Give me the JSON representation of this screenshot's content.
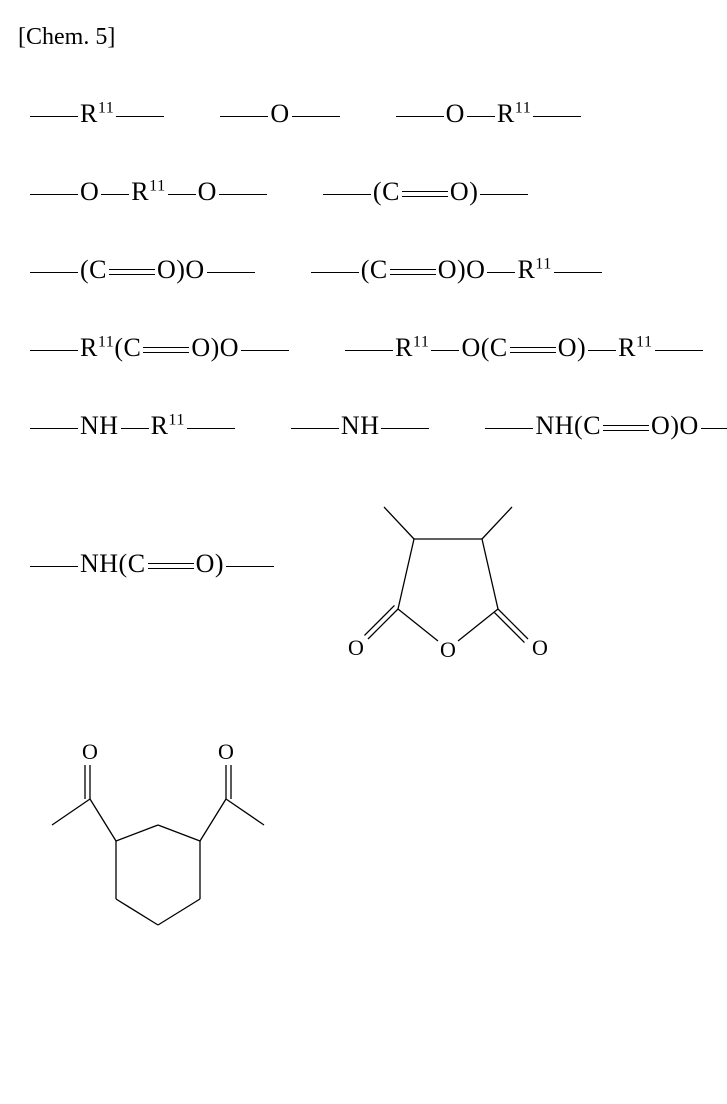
{
  "label": "[Chem. 5]",
  "glyphs": {
    "R11": "R<sup>11</sup>",
    "O": "O",
    "CdO_paren": "(C<span class='dbond' style='width:40px'></span>O)",
    "NH": "NH"
  },
  "svg": {
    "stroke": "#000000",
    "stroke_width": 1.3,
    "font_family": "Times New Roman, Times, serif",
    "font_size_atom": 22
  },
  "rows": [
    {
      "items": [
        {
          "t": "frag",
          "parts": [
            "bond",
            "R11",
            "bond"
          ]
        },
        {
          "t": "frag",
          "parts": [
            "bond",
            "O",
            "bond"
          ]
        },
        {
          "t": "frag",
          "parts": [
            "bond",
            "O",
            "bond_sm",
            "R11",
            "bond"
          ]
        }
      ]
    },
    {
      "items": [
        {
          "t": "frag",
          "parts": [
            "bond",
            "O",
            "bond_sm",
            "R11",
            "bond_sm",
            "O",
            "bond"
          ]
        },
        {
          "t": "frag",
          "parts": [
            "bond",
            "CdO",
            "bond"
          ]
        }
      ]
    },
    {
      "items": [
        {
          "t": "frag",
          "parts": [
            "bond",
            "CdO",
            "txt:O",
            "bond"
          ]
        },
        {
          "t": "frag",
          "parts": [
            "bond",
            "CdO",
            "txt:O",
            "bond_sm",
            "R11",
            "bond"
          ]
        }
      ]
    },
    {
      "items": [
        {
          "t": "frag",
          "parts": [
            "bond",
            "R11",
            "CdO",
            "txt:O",
            "bond"
          ]
        },
        {
          "t": "frag",
          "parts": [
            "bond",
            "R11",
            "bond_sm",
            "txt:O",
            "CdO",
            "bond_sm",
            "R11",
            "bond"
          ]
        }
      ]
    },
    {
      "items": [
        {
          "t": "frag",
          "parts": [
            "bond",
            "NH",
            "bond_sm",
            "R11",
            "bond"
          ]
        },
        {
          "t": "frag",
          "parts": [
            "bond",
            "NH",
            "bond"
          ]
        },
        {
          "t": "frag",
          "parts": [
            "bond",
            "txt:NH",
            "CdO",
            "txt:O",
            "bond"
          ]
        }
      ]
    },
    {
      "items": [
        {
          "t": "frag",
          "parts": [
            "bond",
            "txt:NH",
            "CdO",
            "bond"
          ]
        },
        {
          "t": "svg",
          "name": "anhydride"
        }
      ]
    },
    {
      "items": [
        {
          "t": "svg",
          "name": "cyclohexane_diketone"
        }
      ]
    }
  ]
}
